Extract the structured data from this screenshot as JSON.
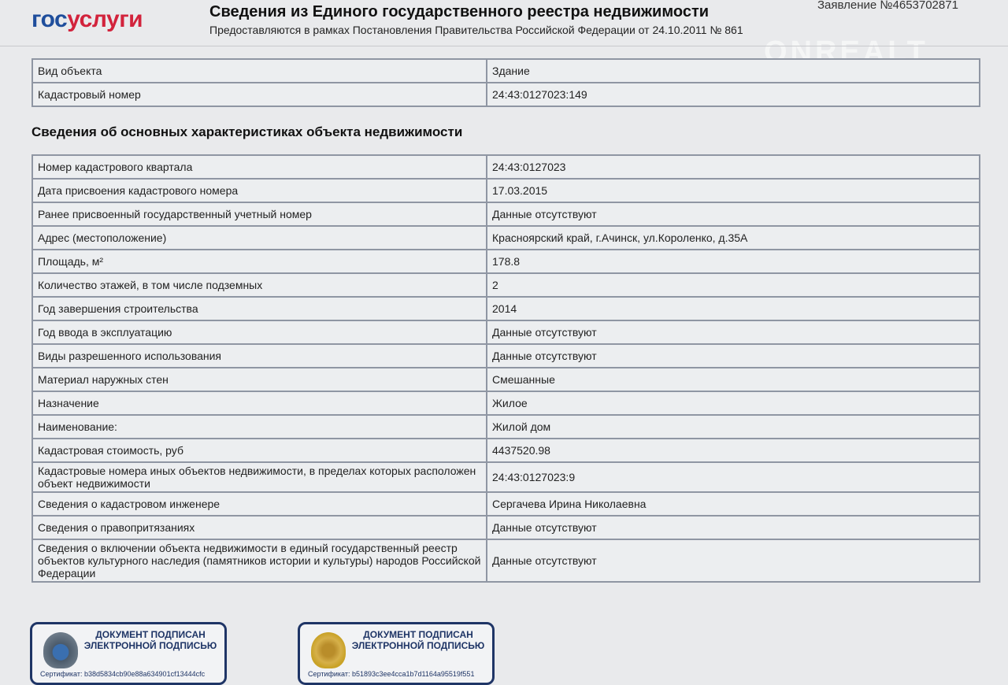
{
  "header": {
    "logo_part1": "гос",
    "logo_part2": "услуги",
    "title": "Сведения из Единого государственного реестра недвижимости",
    "subtitle": "Предоставляются в рамках Постановления Правительства Российской Федерации от 24.10.2011 № 861",
    "application": "Заявление №4653702871",
    "watermark": "ONREALT"
  },
  "object": [
    {
      "k": "Вид объекта",
      "v": "Здание"
    },
    {
      "k": "Кадастровый номер",
      "v": "24:43:0127023:149"
    }
  ],
  "section_title": "Сведения об основных характеристиках объекта недвижимости",
  "rows": [
    {
      "k": "Номер кадастрового квартала",
      "v": "24:43:0127023"
    },
    {
      "k": "Дата присвоения кадастрового номера",
      "v": "17.03.2015"
    },
    {
      "k": "Ранее присвоенный государственный учетный номер",
      "v": "Данные отсутствуют"
    },
    {
      "k": "Адрес (местоположение)",
      "v": "Красноярский край, г.Ачинск, ул.Короленко, д.35А"
    },
    {
      "k": "Площадь, м²",
      "v": "178.8"
    },
    {
      "k": "Количество этажей, в том числе подземных",
      "v": "2"
    },
    {
      "k": "Год завершения строительства",
      "v": "2014"
    },
    {
      "k": "Год ввода в эксплуатацию",
      "v": "Данные отсутствуют"
    },
    {
      "k": "Виды разрешенного использования",
      "v": "Данные отсутствуют"
    },
    {
      "k": "Материал наружных стен",
      "v": "Смешанные"
    },
    {
      "k": "Назначение",
      "v": "Жилое"
    },
    {
      "k": "Наименование:",
      "v": "Жилой дом"
    },
    {
      "k": "Кадастровая стоимость, руб",
      "v": "4437520.98"
    },
    {
      "k": "Кадастровые номера иных объектов недвижимости, в пределах которых расположен объект недвижимости",
      "v": "24:43:0127023:9"
    },
    {
      "k": "Сведения о кадастровом инженере",
      "v": "Сергачева Ирина Николаевна"
    },
    {
      "k": "Сведения о правопритязаниях",
      "v": "Данные отсутствуют"
    },
    {
      "k": "Сведения о включении объекта недвижимости в единый государственный реестр объектов культурного наследия (памятников истории и культуры) народов Российской Федерации",
      "v": "Данные отсутствуют"
    }
  ],
  "stamps": [
    {
      "text": "ДОКУМЕНТ ПОДПИСАН ЭЛЕКТРОННОЙ ПОДПИСЬЮ",
      "cert": "Сертификат: b38d5834cb90e88a634901cf13444cfc",
      "emblem": "rosreestr-emblem",
      "color": "#3a6fb0"
    },
    {
      "text": "ДОКУМЕНТ ПОДПИСАН ЭЛЕКТРОННОЙ ПОДПИСЬЮ",
      "cert": "Сертификат: b51893c3ee4cca1b7d1164a95519f551",
      "emblem": "russian-coat-of-arms",
      "color": "#c9a227"
    }
  ]
}
